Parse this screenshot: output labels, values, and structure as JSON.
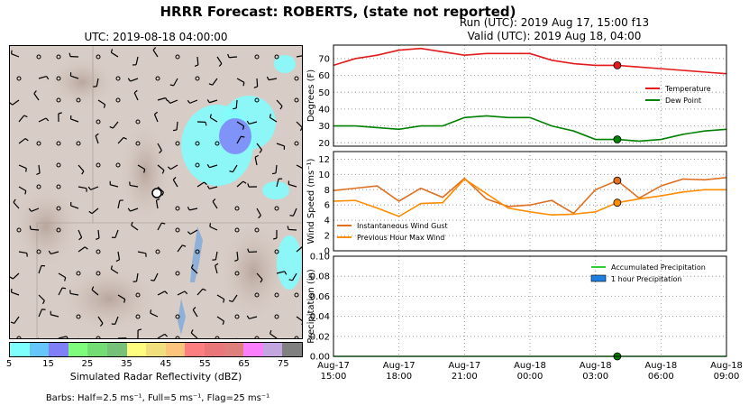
{
  "header": {
    "title": "HRRR Forecast: ROBERTS, (state not reported)",
    "run": "Run (UTC): 2019 Aug 17, 15:00 f13",
    "valid": "Valid (UTC): 2019 Aug 18, 04:00"
  },
  "map": {
    "title": "UTC: 2019-08-18 04:00:00"
  },
  "colorbar": {
    "label": "Simulated Radar Reflectivity (dBZ)",
    "ticks": [
      "5",
      "15",
      "25",
      "35",
      "45",
      "55",
      "65",
      "75"
    ],
    "colors": [
      "#7ffefe",
      "#66c6fc",
      "#7f80f8",
      "#7efd7d",
      "#74dc74",
      "#77c07a",
      "#fefd7f",
      "#f0df7c",
      "#fdc57c",
      "#fc7e7e",
      "#e97779",
      "#de7f7d",
      "#fb7efc",
      "#c3a5e0",
      "#808080"
    ]
  },
  "barbs_note": "Barbs: Half=2.5 ms⁻¹, Full=5 ms⁻¹, Flag=25 ms⁻¹",
  "chart_data": [
    {
      "type": "line",
      "x": [
        "Aug-17 15:00",
        "Aug-17 16:00",
        "Aug-17 17:00",
        "Aug-17 18:00",
        "Aug-17 19:00",
        "Aug-17 20:00",
        "Aug-17 21:00",
        "Aug-17 22:00",
        "Aug-17 23:00",
        "Aug-18 00:00",
        "Aug-18 01:00",
        "Aug-18 02:00",
        "Aug-18 03:00",
        "Aug-18 04:00",
        "Aug-18 05:00",
        "Aug-18 06:00",
        "Aug-18 07:00",
        "Aug-18 08:00",
        "Aug-18 09:00"
      ],
      "ylabel": "Degrees (F)",
      "ylim": [
        18,
        78
      ],
      "yticks": [
        "20",
        "30",
        "40",
        "50",
        "60",
        "70"
      ],
      "series": [
        {
          "name": "Temperature",
          "color": "#e31a1c",
          "values": [
            66,
            70,
            72,
            75,
            76,
            74,
            72,
            73,
            73,
            73,
            69,
            67,
            66,
            66,
            65,
            64,
            63,
            62,
            61
          ]
        },
        {
          "name": "Dew Point",
          "color": "#008000",
          "values": [
            30,
            30,
            29,
            28,
            30,
            30,
            35,
            36,
            35,
            35,
            30,
            27,
            22,
            22,
            21,
            22,
            25,
            27,
            28
          ]
        }
      ],
      "markers": [
        {
          "x_index": 13,
          "value": 66,
          "color": "#e31a1c"
        },
        {
          "x_index": 13,
          "value": 22,
          "color": "#008000"
        }
      ],
      "legend_position": "right"
    },
    {
      "type": "line",
      "x": [
        "Aug-17 15:00",
        "Aug-17 16:00",
        "Aug-17 17:00",
        "Aug-17 18:00",
        "Aug-17 19:00",
        "Aug-17 20:00",
        "Aug-17 21:00",
        "Aug-17 22:00",
        "Aug-17 23:00",
        "Aug-18 00:00",
        "Aug-18 01:00",
        "Aug-18 02:00",
        "Aug-18 03:00",
        "Aug-18 04:00",
        "Aug-18 05:00",
        "Aug-18 06:00",
        "Aug-18 07:00",
        "Aug-18 08:00",
        "Aug-18 09:00"
      ],
      "ylabel": "Wind Speed (ms⁻¹)",
      "ylim": [
        0,
        13
      ],
      "yticks": [
        "0",
        "2",
        "4",
        "6",
        "8",
        "10",
        "12"
      ],
      "series": [
        {
          "name": "Instantaneous Wind Gust",
          "color": "#e07020",
          "values": [
            7.9,
            8.2,
            8.5,
            6.5,
            8.2,
            7.0,
            9.5,
            6.8,
            5.8,
            6.0,
            6.6,
            4.9,
            8.0,
            9.2,
            6.9,
            8.5,
            9.4,
            9.3,
            9.6
          ]
        },
        {
          "name": "Previous Hour Max Wind",
          "color": "#ff8c00",
          "values": [
            6.5,
            6.6,
            5.6,
            4.5,
            6.2,
            6.3,
            9.4,
            7.5,
            5.6,
            5.1,
            4.7,
            4.8,
            5.1,
            6.3,
            6.8,
            7.2,
            7.7,
            8.0,
            8.0
          ]
        }
      ],
      "markers": [
        {
          "x_index": 13,
          "value": 9.2,
          "color": "#e07020"
        },
        {
          "x_index": 13,
          "value": 6.3,
          "color": "#ff8c00"
        }
      ],
      "legend_position": "lower-left"
    },
    {
      "type": "bar",
      "x": [
        "Aug-17 15:00",
        "Aug-17 16:00",
        "Aug-17 17:00",
        "Aug-17 18:00",
        "Aug-17 19:00",
        "Aug-17 20:00",
        "Aug-17 21:00",
        "Aug-17 22:00",
        "Aug-17 23:00",
        "Aug-18 00:00",
        "Aug-18 01:00",
        "Aug-18 02:00",
        "Aug-18 03:00",
        "Aug-18 04:00",
        "Aug-18 05:00",
        "Aug-18 06:00",
        "Aug-18 07:00",
        "Aug-18 08:00",
        "Aug-18 09:00"
      ],
      "ylabel": "Precipitation (in)",
      "ylim": [
        0,
        0.1
      ],
      "yticks": [
        "0.00",
        "0.02",
        "0.04",
        "0.06",
        "0.08",
        "0.10"
      ],
      "series": [
        {
          "name": "Accumulated Precipitation",
          "color": "#32cd32",
          "values": [
            0,
            0,
            0,
            0,
            0,
            0,
            0,
            0,
            0,
            0,
            0,
            0,
            0,
            0,
            0,
            0,
            0,
            0,
            0
          ]
        },
        {
          "name": "1 hour Precipitation",
          "color": "#1e7fe0",
          "values": [
            0,
            0,
            0,
            0,
            0,
            0,
            0,
            0,
            0,
            0,
            0,
            0,
            0,
            0,
            0,
            0,
            0,
            0,
            0
          ]
        }
      ],
      "markers": [
        {
          "x_index": 13,
          "value": 0,
          "color": "#008000"
        }
      ],
      "legend_position": "top-right"
    }
  ],
  "xaxis": {
    "ticks": [
      {
        "index": 0,
        "l1": "Aug-17",
        "l2": "15:00"
      },
      {
        "index": 3,
        "l1": "Aug-17",
        "l2": "18:00"
      },
      {
        "index": 6,
        "l1": "Aug-17",
        "l2": "21:00"
      },
      {
        "index": 9,
        "l1": "Aug-18",
        "l2": "00:00"
      },
      {
        "index": 12,
        "l1": "Aug-18",
        "l2": "03:00"
      },
      {
        "index": 15,
        "l1": "Aug-18",
        "l2": "06:00"
      },
      {
        "index": 18,
        "l1": "Aug-18",
        "l2": "09:00"
      }
    ]
  }
}
